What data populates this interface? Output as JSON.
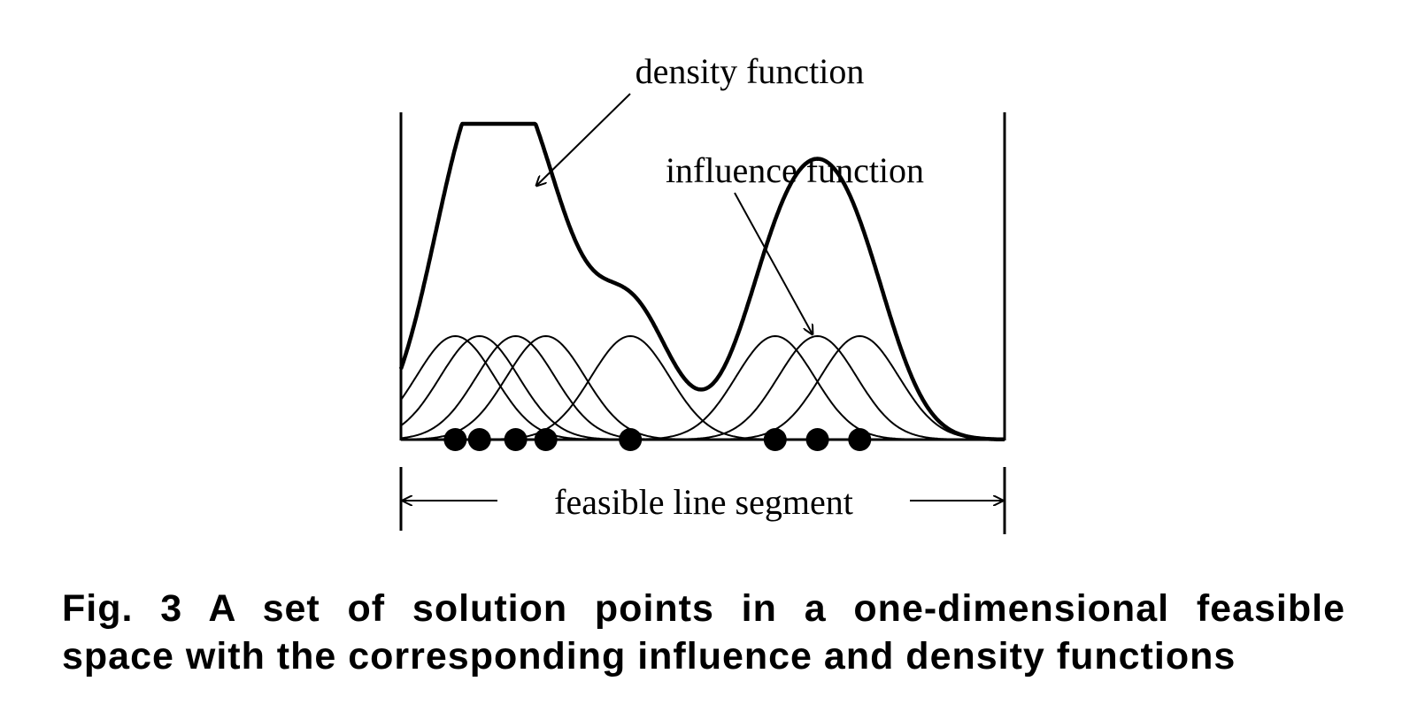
{
  "labels": {
    "density": "density function",
    "influence": "influence function",
    "segment": "feasible line segment"
  },
  "caption": {
    "line1": "Fig. 3   A set of solution points in a one-dimensional feasible",
    "line2": "space with the corresponding influence and density functions"
  },
  "diagram": {
    "solution_points": [
      0.09,
      0.13,
      0.19,
      0.24,
      0.38,
      0.62,
      0.69,
      0.76
    ],
    "influence_width": 0.065,
    "colors": {
      "stroke": "#000000",
      "background": "#ffffff"
    }
  }
}
